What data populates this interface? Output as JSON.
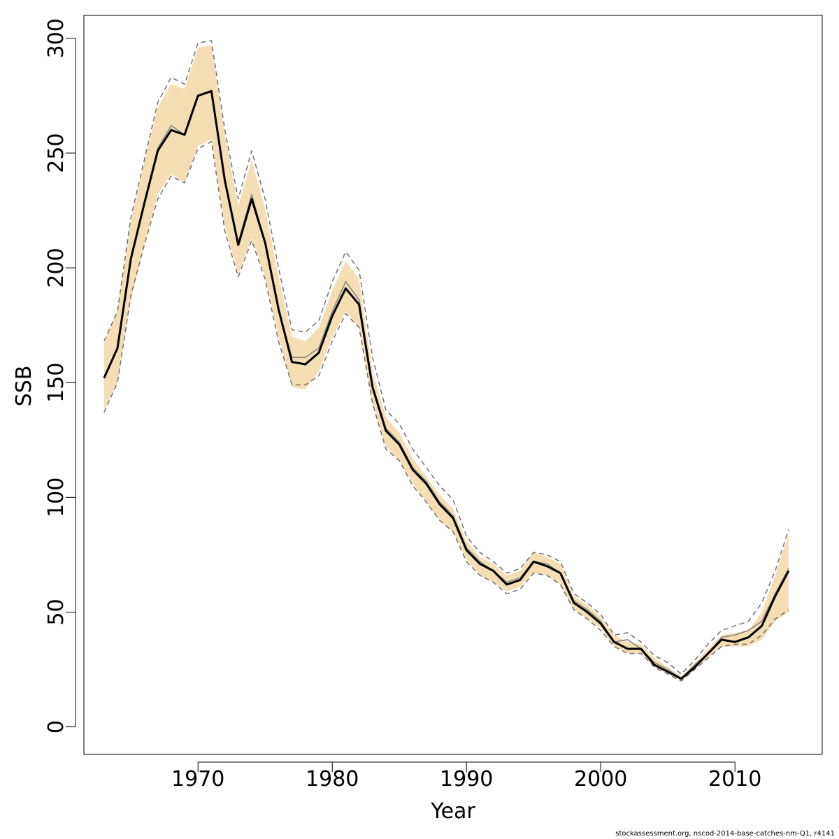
{
  "chart_data": {
    "type": "line",
    "xlabel": "Year",
    "ylabel": "SSB",
    "xlim": [
      1961.5,
      2016.5
    ],
    "ylim": [
      -12,
      310
    ],
    "x_ticks": [
      1970,
      1980,
      1990,
      2000,
      2010
    ],
    "y_ticks": [
      0,
      50,
      100,
      150,
      200,
      250,
      300
    ],
    "grid": false,
    "colors": {
      "band": "#f5deb3",
      "main": "#000000",
      "secondary": "#808080",
      "dashed": "#707070"
    },
    "x": [
      1963,
      1964,
      1965,
      1966,
      1967,
      1968,
      1969,
      1970,
      1971,
      1972,
      1973,
      1974,
      1975,
      1976,
      1977,
      1978,
      1979,
      1980,
      1981,
      1982,
      1983,
      1984,
      1985,
      1986,
      1987,
      1988,
      1989,
      1990,
      1991,
      1992,
      1993,
      1994,
      1995,
      1996,
      1997,
      1998,
      1999,
      2000,
      2001,
      2002,
      2003,
      2004,
      2005,
      2006,
      2007,
      2008,
      2009,
      2010,
      2011,
      2012,
      2013,
      2014
    ],
    "series": [
      {
        "role": "band",
        "lower": [
          138,
          150,
          186,
          210,
          232,
          241,
          237,
          253,
          256,
          218,
          197,
          213,
          196,
          170,
          148,
          147,
          155,
          170,
          181,
          174,
          141,
          122,
          116,
          106,
          98,
          90,
          85,
          73,
          66,
          63,
          59,
          61,
          67,
          66,
          62,
          51,
          47,
          43,
          35,
          32,
          32,
          26,
          23,
          20,
          25,
          30,
          35,
          35,
          35,
          38,
          46,
          50
        ],
        "upper": [
          167,
          182,
          220,
          246,
          270,
          280,
          278,
          296,
          297,
          258,
          227,
          247,
          226,
          196,
          170,
          168,
          174,
          190,
          203,
          195,
          155,
          135,
          128,
          117,
          109,
          101,
          95,
          81,
          74,
          71,
          66,
          68,
          76,
          74,
          71,
          57,
          53,
          48,
          40,
          37,
          36,
          30,
          26,
          22,
          28,
          34,
          40,
          41,
          42,
          50,
          66,
          84
        ]
      },
      {
        "role": "point-estimate",
        "values": [
          152,
          165,
          204,
          228,
          251,
          260,
          258,
          275,
          277,
          238,
          210,
          230,
          211,
          182,
          159,
          158,
          163,
          179,
          191,
          184,
          148,
          129,
          123,
          112,
          106,
          97,
          91,
          77,
          71,
          68,
          62,
          64,
          72,
          70,
          67,
          54,
          50,
          45,
          37,
          34,
          34,
          27,
          24,
          21,
          26,
          32,
          38,
          37,
          39,
          44,
          57,
          68
        ]
      },
      {
        "role": "secondary-estimate",
        "values": [
          152,
          165,
          204,
          229,
          252,
          262,
          258,
          275,
          277,
          239,
          211,
          232,
          211,
          182,
          161,
          161,
          165,
          181,
          194,
          186,
          149,
          130,
          124,
          113,
          107,
          98,
          92,
          78,
          72,
          68,
          63,
          65,
          72,
          71,
          67,
          55,
          51,
          46,
          37,
          38,
          34,
          28,
          25,
          21,
          27,
          32,
          39,
          40,
          42,
          46,
          58,
          69
        ]
      },
      {
        "role": "dashed-lower",
        "values": [
          137,
          150,
          188,
          210,
          230,
          240,
          237,
          252,
          255,
          216,
          196,
          212,
          195,
          168,
          149,
          149,
          153,
          168,
          180,
          174,
          141,
          121,
          116,
          105,
          98,
          90,
          85,
          72,
          66,
          63,
          58,
          60,
          67,
          66,
          62,
          51,
          47,
          42,
          35,
          32,
          32,
          26,
          23,
          20,
          25,
          30,
          35,
          36,
          36,
          40,
          47,
          51
        ]
      },
      {
        "role": "dashed-upper",
        "values": [
          168,
          181,
          222,
          247,
          272,
          283,
          280,
          298,
          299,
          260,
          230,
          251,
          230,
          200,
          173,
          172,
          177,
          194,
          207,
          199,
          161,
          138,
          132,
          121,
          113,
          105,
          99,
          83,
          76,
          72,
          67,
          69,
          76,
          75,
          72,
          58,
          54,
          49,
          40,
          41,
          37,
          31,
          28,
          23,
          29,
          36,
          42,
          44,
          46,
          54,
          68,
          86
        ]
      }
    ]
  },
  "footer": {
    "text": "stockassessment.org, nscod-2014-base-catches-nm-Q1, r4141"
  }
}
